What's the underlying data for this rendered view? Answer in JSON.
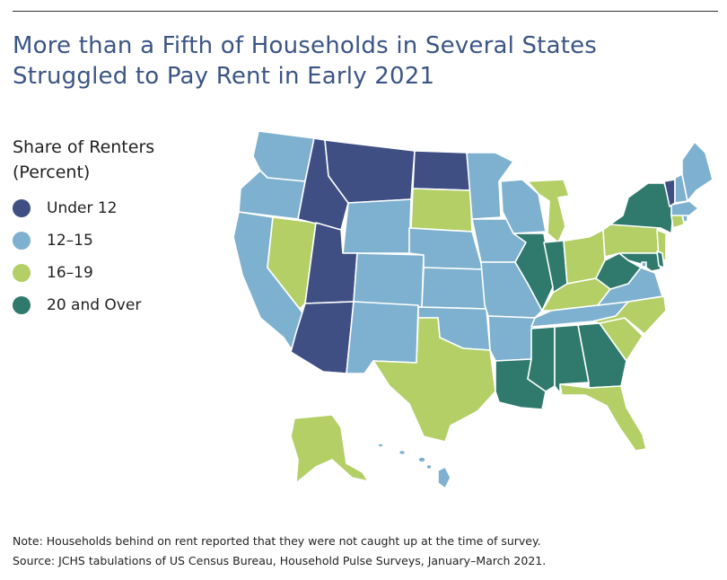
{
  "title": {
    "line1": "More than a Fifth of Households in Several States",
    "line2": "Struggled to Pay Rent in Early 2021"
  },
  "legend": {
    "title_line1": "Share of Renters",
    "title_line2": "(Percent)",
    "items": [
      {
        "label": "Under 12",
        "color": "#3f4f84"
      },
      {
        "label": "12–15",
        "color": "#7eb1cf"
      },
      {
        "label": "16–19",
        "color": "#b3cf66"
      },
      {
        "label": "20 and Over",
        "color": "#2f7a6d"
      }
    ]
  },
  "colors": {
    "under12": "#3f4f84",
    "c12_15": "#7eb1cf",
    "c16_19": "#b3cf66",
    "over20": "#2f7a6d",
    "title": "#3c5585"
  },
  "map_states": {
    "WA": "12–15",
    "OR": "12–15",
    "CA": "12–15",
    "NV": "16–19",
    "ID": "Under 12",
    "MT": "Under 12",
    "WY": "12–15",
    "UT": "Under 12",
    "AZ": "Under 12",
    "CO": "12–15",
    "NM": "12–15",
    "ND": "Under 12",
    "SD": "16–19",
    "NE": "12–15",
    "KS": "12–15",
    "OK": "12–15",
    "TX": "16–19",
    "MN": "12–15",
    "IA": "12–15",
    "MO": "12–15",
    "AR": "12–15",
    "LA": "20 and Over",
    "WI": "12–15",
    "IL": "20 and Over",
    "MI": "16–19",
    "IN": "20 and Over",
    "OH": "16–19",
    "KY": "16–19",
    "TN": "12–15",
    "MS": "20 and Over",
    "AL": "20 and Over",
    "GA": "20 and Over",
    "FL": "16–19",
    "SC": "16–19",
    "NC": "16–19",
    "VA": "12–15",
    "WV": "20 and Over",
    "PA": "16–19",
    "NY": "20 and Over",
    "VT": "Under 12",
    "NH": "12–15",
    "ME": "12–15",
    "MA": "12–15",
    "RI": "12–15",
    "CT": "16–19",
    "NJ": "16–19",
    "DE": "20 and Over",
    "MD": "20 and Over",
    "DC": "12–15",
    "AK": "16–19",
    "HI": "12–15"
  },
  "notes": {
    "note": "Note: Households behind on rent reported that they were not caught up at the time of survey.",
    "source": "Source: JCHS tabulations of US Census Bureau, Household Pulse Surveys, January–March 2021."
  }
}
